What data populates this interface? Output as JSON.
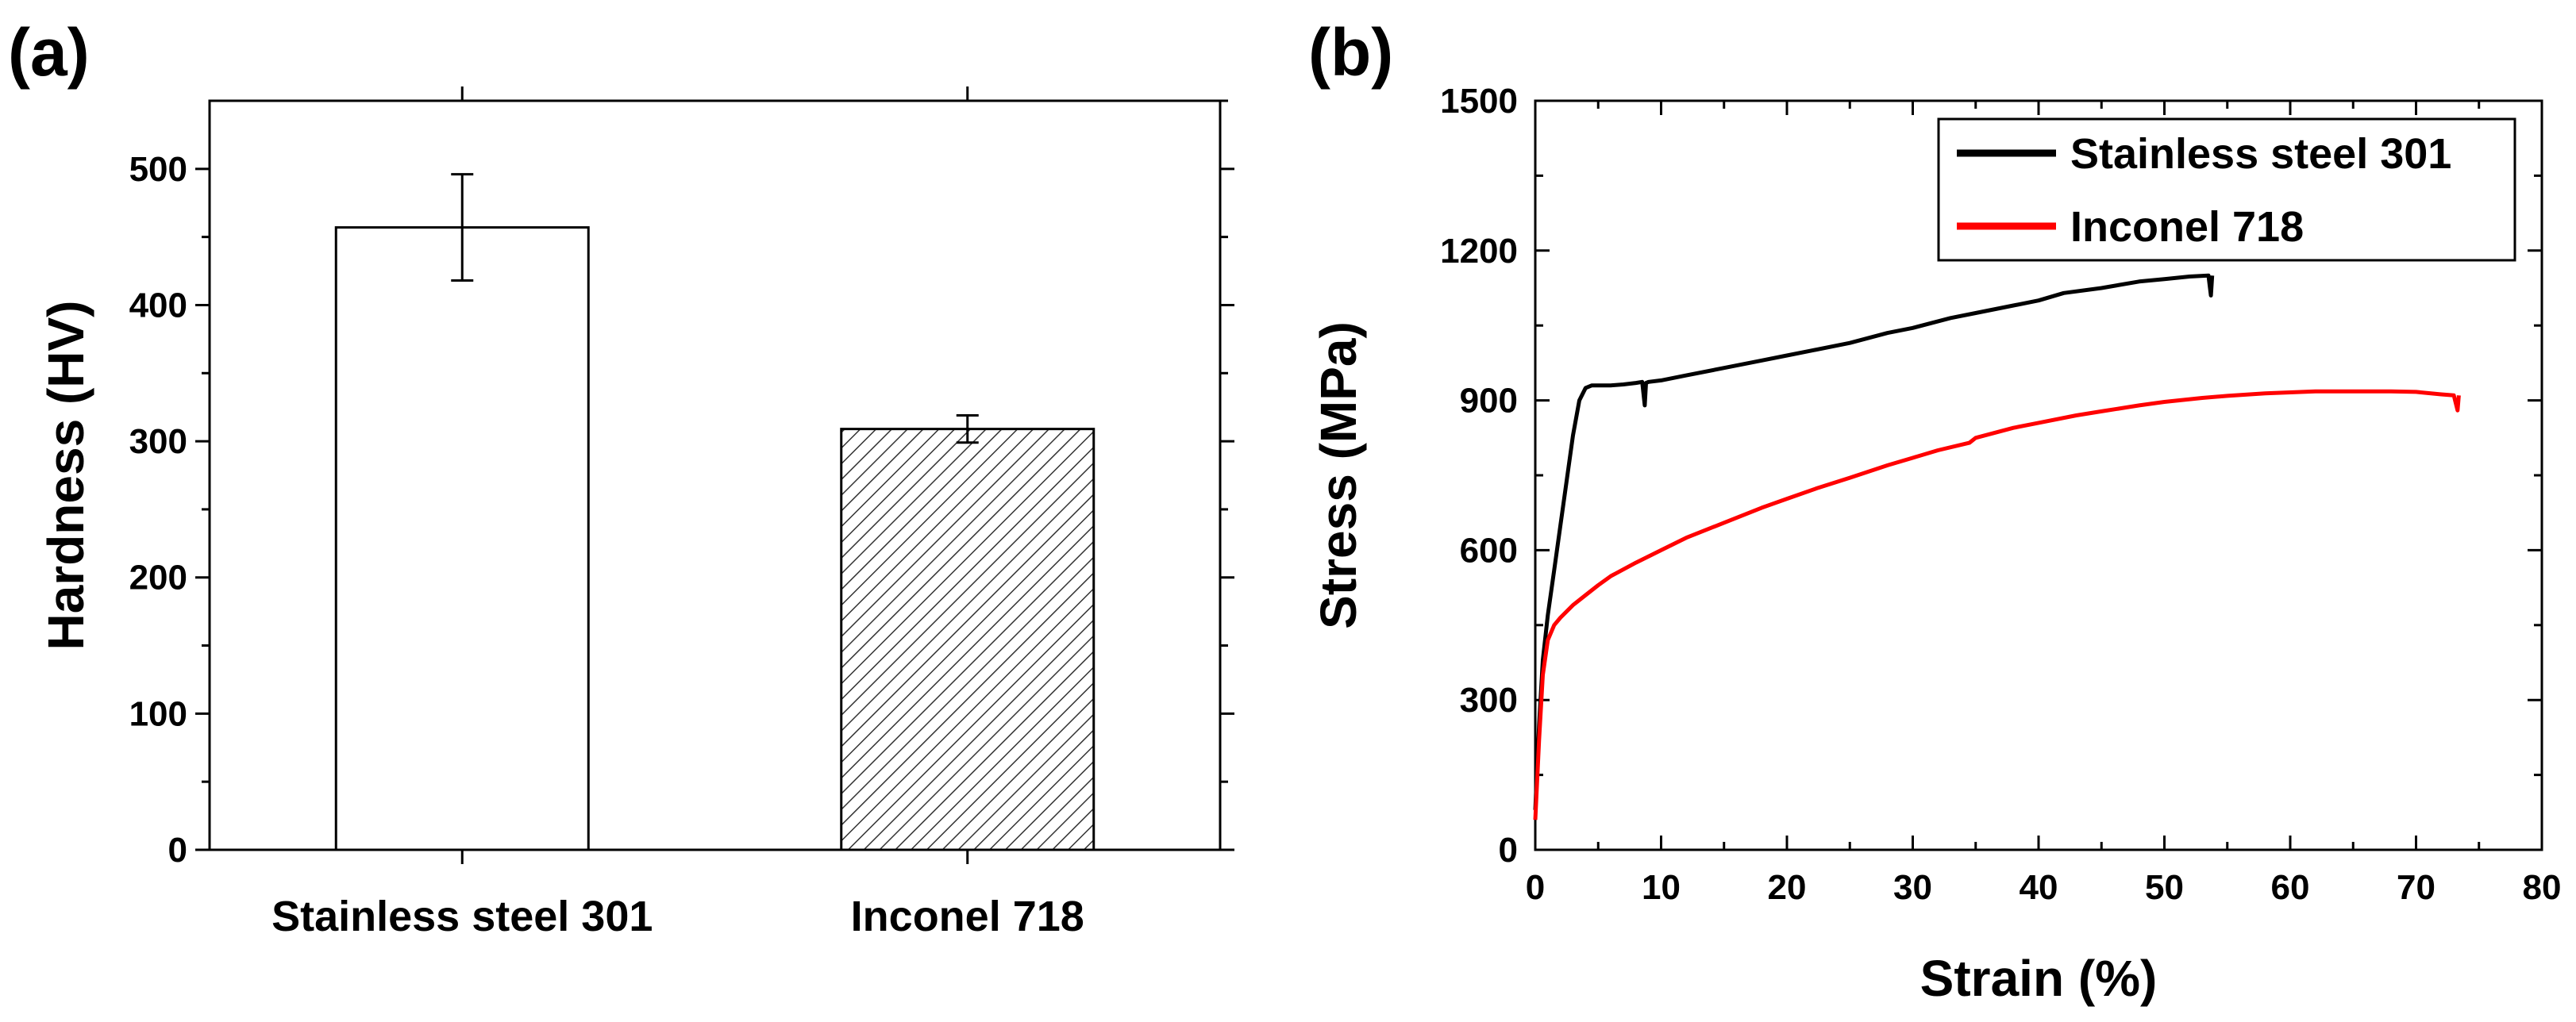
{
  "panels": {
    "a": {
      "label": "(a)"
    },
    "b": {
      "label": "(b)"
    }
  },
  "chart_data": [
    {
      "type": "bar",
      "panel": "(a)",
      "title": "",
      "xlabel": "",
      "ylabel": "Hardness (HV)",
      "categories": [
        "Stainless steel 301",
        "Inconel 718"
      ],
      "values": [
        457,
        309
      ],
      "errors": [
        39,
        10
      ],
      "fills": [
        "solid-white",
        "hatched"
      ],
      "ylim": [
        0,
        550
      ],
      "yticks": [
        0,
        100,
        200,
        300,
        400,
        500
      ],
      "ytick_labels": [
        "0",
        "100",
        "200",
        "300",
        "400",
        "500"
      ],
      "grid": false
    },
    {
      "type": "line",
      "panel": "(b)",
      "title": "",
      "xlabel": "Strain (%)",
      "ylabel": "Stress (MPa)",
      "xlim": [
        0,
        80
      ],
      "ylim": [
        0,
        1500
      ],
      "xticks": [
        0,
        10,
        20,
        30,
        40,
        50,
        60,
        70,
        80
      ],
      "xtick_labels": [
        "0",
        "10",
        "20",
        "30",
        "40",
        "50",
        "60",
        "70",
        "80"
      ],
      "yticks": [
        0,
        300,
        600,
        900,
        1200,
        1500
      ],
      "ytick_labels": [
        "0",
        "300",
        "600",
        "900",
        "1200",
        "1500"
      ],
      "grid": false,
      "legend_position": "top-right",
      "series": [
        {
          "name": "Stainless steel 301",
          "color": "#000000",
          "x": [
            0,
            0.3,
            0.6,
            1.0,
            1.5,
            2.0,
            2.5,
            3.0,
            3.5,
            4.0,
            4.5,
            5.0,
            6.0,
            7.0,
            8.0,
            8.5,
            8.7,
            8.8,
            9.0,
            10,
            12,
            15,
            18,
            20,
            22,
            25,
            28,
            30,
            33,
            35,
            38,
            40,
            42,
            45,
            48,
            50,
            52,
            53.5,
            53.7,
            53.8
          ],
          "y": [
            80,
            250,
            380,
            470,
            560,
            650,
            740,
            830,
            900,
            925,
            930,
            930,
            930,
            932,
            935,
            937,
            890,
            935,
            937,
            940,
            950,
            965,
            980,
            990,
            1000,
            1015,
            1035,
            1045,
            1065,
            1075,
            1090,
            1100,
            1115,
            1125,
            1138,
            1143,
            1148,
            1150,
            1110,
            1150
          ]
        },
        {
          "name": "Inconel 718",
          "color": "#ff0000",
          "x": [
            0,
            0.3,
            0.6,
            1.0,
            1.5,
            2.0,
            3.0,
            4.0,
            5.0,
            6.0,
            8.0,
            10,
            12,
            15,
            18,
            20,
            22.5,
            25,
            28,
            30,
            32,
            34.5,
            35,
            38,
            40,
            43,
            45,
            48,
            50,
            53,
            55,
            58,
            60,
            62,
            65,
            68,
            70,
            72,
            73,
            73.3,
            73.4
          ],
          "y": [
            60,
            220,
            350,
            420,
            450,
            465,
            490,
            510,
            530,
            548,
            575,
            600,
            625,
            655,
            685,
            703,
            725,
            745,
            770,
            785,
            800,
            815,
            825,
            845,
            855,
            870,
            878,
            890,
            897,
            905,
            909,
            914,
            916,
            918,
            918,
            918,
            917,
            912,
            910,
            880,
            910
          ]
        }
      ]
    }
  ]
}
